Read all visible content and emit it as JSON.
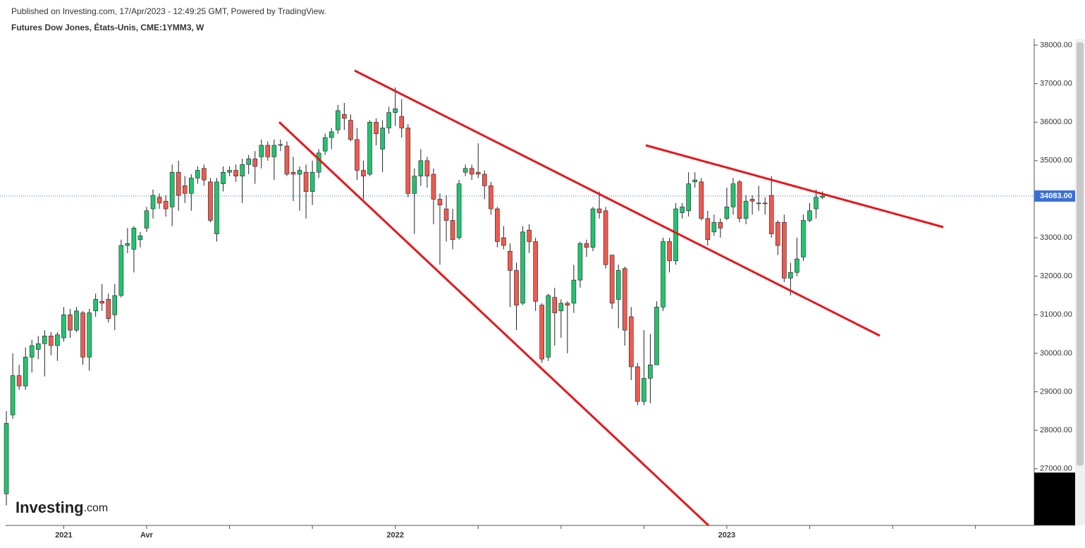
{
  "header": {
    "published": "Published on Investing.com, 17/Apr/2023 - 12:49:25 GMT, Powered by TradingView.",
    "symbol": "Futures Dow Jones, États-Unis, CME:1YMM3, W"
  },
  "logo": {
    "name": "Investing",
    "suffix": ".com"
  },
  "chart_data": {
    "type": "candlestick",
    "up_color": "#22c36f",
    "down_color": "#ef5a50",
    "xlim": [
      -1,
      161
    ],
    "xticks": [
      {
        "value": 9,
        "label": "2021"
      },
      {
        "value": 22,
        "label": "Avr"
      },
      {
        "value": 61,
        "label": "2022"
      },
      {
        "value": 113,
        "label": "2023"
      }
    ],
    "xminorticks": [
      35,
      48,
      74,
      87,
      100,
      126,
      139,
      152
    ],
    "ylim": [
      25530,
      38165
    ],
    "yticks": [
      {
        "value": 27000,
        "label": "27000.00"
      },
      {
        "value": 28000,
        "label": "28000.00"
      },
      {
        "value": 29000,
        "label": "29000.00"
      },
      {
        "value": 30000,
        "label": "30000.00"
      },
      {
        "value": 31000,
        "label": "31000.00"
      },
      {
        "value": 32000,
        "label": "32000.00"
      },
      {
        "value": 33000,
        "label": "33000.00"
      },
      {
        "value": 34000,
        "label": "34000.00"
      },
      {
        "value": 35000,
        "label": "35000.00"
      },
      {
        "value": 36000,
        "label": "36000.00"
      },
      {
        "value": 37000,
        "label": "37000.00"
      },
      {
        "value": 38000,
        "label": "38000.00"
      }
    ],
    "open": [
      26350,
      28400,
      29420,
      29150,
      29900,
      30100,
      30250,
      30450,
      30200,
      30400,
      31000,
      30600,
      31050,
      29900,
      31100,
      31350,
      31400,
      31000,
      31500,
      32800,
      32700,
      32950,
      33250,
      33750,
      34050,
      33950,
      33800,
      34700,
      34350,
      34150,
      34550,
      34800,
      34450,
      33100,
      34400,
      34700,
      34750,
      34600,
      34900,
      35050,
      35100,
      35400,
      35100,
      35400,
      35380,
      34700,
      34650,
      34700,
      34200,
      34700,
      35250,
      35600,
      35800,
      36200,
      36050,
      35550,
      34750,
      34650,
      36000,
      35300,
      35850,
      36250,
      36150,
      35850,
      34150,
      34600,
      35000,
      34650,
      34000,
      33750,
      33450,
      33000,
      34700,
      34800,
      34700,
      34650,
      34350,
      33750,
      33000,
      32650,
      32150,
      31300,
      33200,
      32900,
      31250,
      29900,
      31450,
      31100,
      31300,
      31300,
      31900,
      32850,
      32750,
      33750,
      33700,
      32550,
      31400,
      32200,
      30950,
      29650,
      28750,
      29350,
      29700,
      31200,
      32900,
      32400,
      33650,
      33700,
      34450,
      34450,
      33500,
      33150,
      33400,
      33500,
      33800,
      34450,
      33500,
      34000,
      33900,
      33900,
      34100,
      33400,
      33400,
      31950,
      32100,
      32500,
      33450,
      33750,
      34050
    ],
    "high": [
      28500,
      30000,
      29700,
      30150,
      30350,
      30450,
      30600,
      30550,
      30550,
      31200,
      31150,
      31200,
      31100,
      31150,
      31550,
      31800,
      31550,
      31800,
      32950,
      33250,
      33300,
      33150,
      33800,
      34250,
      34150,
      34100,
      34900,
      35000,
      34600,
      34650,
      34850,
      34900,
      34550,
      34550,
      34850,
      34850,
      34900,
      35050,
      35150,
      35250,
      35550,
      35500,
      35550,
      35550,
      35500,
      35100,
      34850,
      34900,
      35000,
      35300,
      35700,
      35850,
      36450,
      36500,
      36200,
      35850,
      35000,
      36050,
      36100,
      36050,
      36400,
      36900,
      36600,
      35950,
      34800,
      35300,
      35100,
      34800,
      34150,
      34100,
      33750,
      34500,
      34900,
      34900,
      35450,
      34750,
      34450,
      33800,
      33300,
      32850,
      32350,
      33300,
      33350,
      33000,
      31300,
      31550,
      31700,
      31400,
      31350,
      32300,
      32900,
      32950,
      33800,
      34200,
      33800,
      32550,
      32300,
      32250,
      31200,
      29750,
      30600,
      30500,
      31350,
      33000,
      33000,
      33900,
      33900,
      34700,
      34700,
      34550,
      33700,
      33600,
      33500,
      34300,
      34550,
      34500,
      34100,
      34100,
      34350,
      34050,
      34600,
      33450,
      33600,
      32350,
      33000,
      33600,
      33900,
      34250,
      34200
    ],
    "low": [
      26050,
      28300,
      29050,
      29050,
      29500,
      29850,
      29400,
      29950,
      29800,
      30300,
      30400,
      30550,
      29700,
      29550,
      30950,
      31100,
      30800,
      30600,
      31450,
      32600,
      32100,
      32750,
      33150,
      33500,
      33750,
      33550,
      33300,
      33700,
      33900,
      33700,
      34400,
      34350,
      33400,
      32900,
      34200,
      34600,
      34450,
      33900,
      34650,
      34400,
      34800,
      35000,
      34500,
      35250,
      34600,
      33950,
      33700,
      33500,
      33850,
      34550,
      35150,
      35300,
      35700,
      35800,
      35500,
      34500,
      34000,
      34600,
      35400,
      34700,
      35700,
      35900,
      35600,
      34050,
      33100,
      34350,
      34300,
      33350,
      32300,
      32900,
      32700,
      32950,
      34600,
      34500,
      34550,
      34000,
      33600,
      32750,
      32700,
      31200,
      30600,
      31250,
      32600,
      31100,
      29750,
      29800,
      30200,
      30400,
      30000,
      31050,
      31700,
      32500,
      32650,
      33500,
      32200,
      31150,
      30650,
      30200,
      29300,
      28650,
      28650,
      28700,
      29700,
      31100,
      32100,
      32300,
      33500,
      33550,
      34300,
      33450,
      32800,
      33050,
      33000,
      33450,
      33600,
      33400,
      33350,
      33600,
      33700,
      33600,
      33000,
      32550,
      31850,
      31500,
      32000,
      32400,
      33400,
      33500,
      34000
    ],
    "close": [
      28180,
      29420,
      29150,
      29900,
      30200,
      30250,
      30450,
      30200,
      30480,
      31000,
      30600,
      31100,
      29900,
      31050,
      31400,
      31300,
      30900,
      31500,
      32800,
      32850,
      33250,
      33050,
      33700,
      34100,
      33900,
      33750,
      34700,
      34100,
      34150,
      34550,
      34750,
      34500,
      33450,
      34450,
      34700,
      34750,
      34600,
      34900,
      35050,
      34850,
      35400,
      35100,
      35400,
      35420,
      34650,
      34650,
      34750,
      34200,
      34700,
      35200,
      35600,
      35750,
      36300,
      36100,
      35550,
      34750,
      34600,
      36000,
      35700,
      35850,
      36250,
      36350,
      35850,
      34150,
      34600,
      35000,
      34600,
      34000,
      33850,
      33450,
      32950,
      34400,
      34800,
      34650,
      34650,
      34350,
      33750,
      32900,
      32800,
      32150,
      31250,
      33150,
      32900,
      31350,
      29850,
      31500,
      31050,
      31300,
      31250,
      31900,
      32850,
      32750,
      33750,
      33650,
      32300,
      31300,
      32150,
      30600,
      29650,
      28750,
      29350,
      29700,
      31200,
      32900,
      32400,
      33750,
      33800,
      34400,
      34500,
      33500,
      32950,
      33400,
      33250,
      33800,
      34400,
      33500,
      33950,
      33950,
      33900,
      33900,
      33100,
      32800,
      31950,
      32100,
      32450,
      33450,
      33700,
      34050,
      34083
    ],
    "last_label": "34083.00"
  }
}
